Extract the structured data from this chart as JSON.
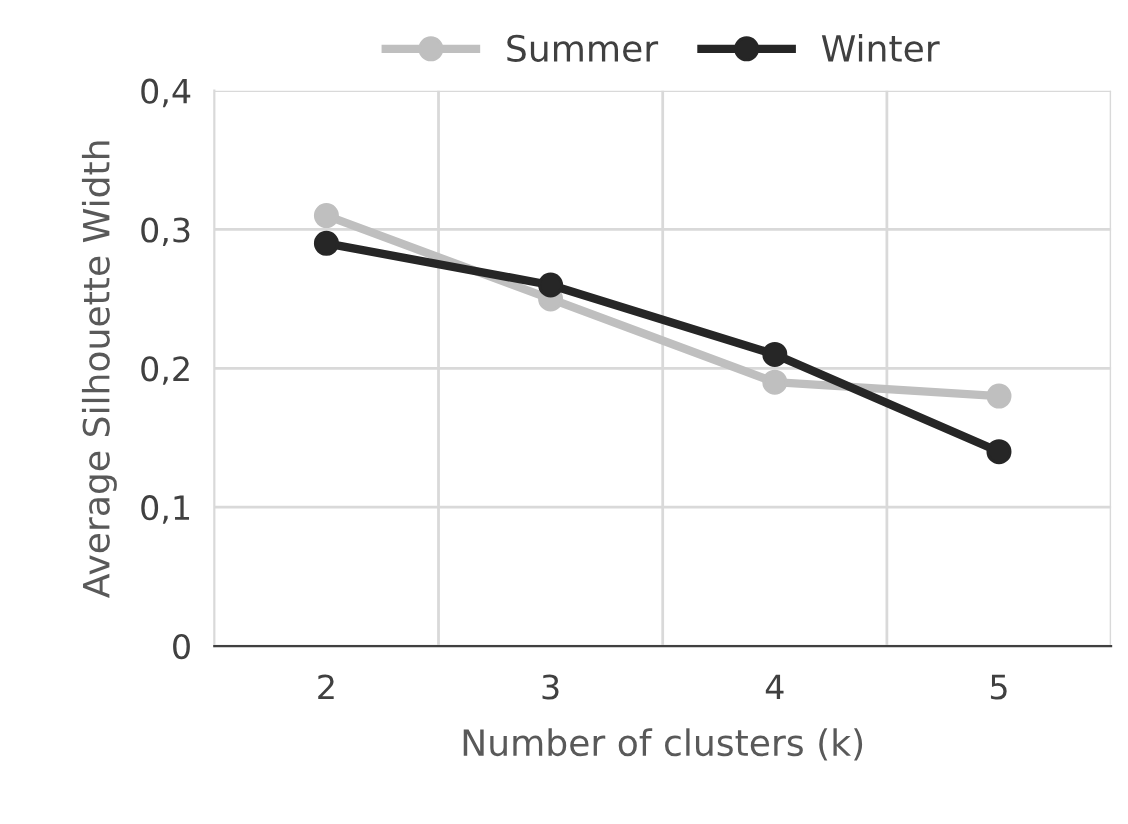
{
  "chart_data": {
    "type": "line",
    "xlabel": "Number of clusters (k)",
    "ylabel": "Average Silhouette Width",
    "categories": [
      "2",
      "3",
      "4",
      "5"
    ],
    "series": [
      {
        "name": "Summer",
        "color": "#bfbfbf",
        "values": [
          0.31,
          0.25,
          0.19,
          0.18
        ]
      },
      {
        "name": "Winter",
        "color": "#262626",
        "values": [
          0.29,
          0.26,
          0.21,
          0.14
        ]
      }
    ],
    "ylim": [
      0,
      0.4
    ],
    "yticks": [
      {
        "value": 0,
        "label": "0"
      },
      {
        "value": 0.1,
        "label": "0,1"
      },
      {
        "value": 0.2,
        "label": "0,2"
      },
      {
        "value": 0.3,
        "label": "0,3"
      },
      {
        "value": 0.4,
        "label": "0,4"
      }
    ],
    "grid": true,
    "legend": "top",
    "marker": "circle",
    "line_style": "solid"
  }
}
